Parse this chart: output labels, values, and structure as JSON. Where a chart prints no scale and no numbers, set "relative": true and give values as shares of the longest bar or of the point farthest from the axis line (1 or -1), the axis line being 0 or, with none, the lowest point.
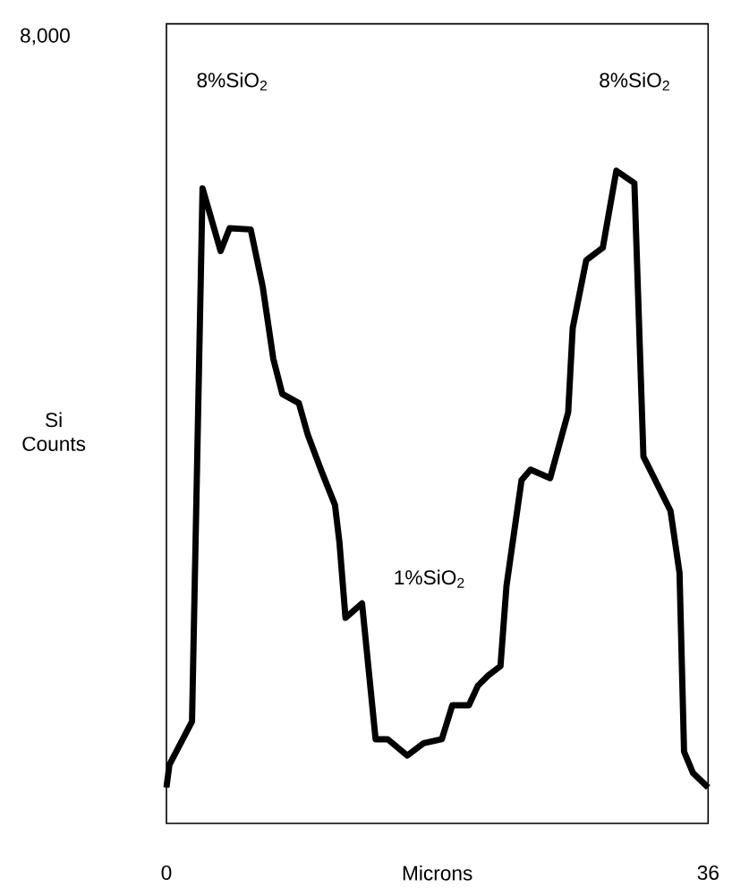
{
  "chart_data": {
    "type": "line",
    "xlabel": "Microns",
    "ylabel": "Si Counts",
    "relative": true,
    "xlim": [
      0,
      36
    ],
    "xticks": [
      0,
      36
    ],
    "x": [
      0,
      0.2,
      1.7,
      2.4,
      3.6,
      4.2,
      5.6,
      6.4,
      7.1,
      7.7,
      8.8,
      9.4,
      10.3,
      11.2,
      11.5,
      11.9,
      13.0,
      13.9,
      14.7,
      16.0,
      17.1,
      18.3,
      19.0,
      20.1,
      20.7,
      21.4,
      22.2,
      22.6,
      23.6,
      24.2,
      25.5,
      26.7,
      27.0,
      27.9,
      29.0,
      29.9,
      31.1,
      31.7,
      33.5,
      34.1,
      34.4,
      35.0,
      36
    ],
    "series": [
      {
        "color": "#000000",
        "values": [
          0.055,
          0.09,
          0.156,
          0.973,
          0.877,
          0.912,
          0.91,
          0.822,
          0.712,
          0.658,
          0.644,
          0.595,
          0.54,
          0.488,
          0.43,
          0.315,
          0.337,
          0.129,
          0.129,
          0.104,
          0.123,
          0.129,
          0.181,
          0.181,
          0.211,
          0.227,
          0.241,
          0.364,
          0.526,
          0.542,
          0.529,
          0.63,
          0.759,
          0.863,
          0.882,
          1.0,
          0.981,
          0.562,
          0.479,
          0.384,
          0.11,
          0.077,
          0.055
        ]
      }
    ],
    "annotations": [
      "8,000",
      "8%SiO$_{2}$",
      "8%SiO$_{2}$",
      "1%SiO$_{2}$"
    ]
  }
}
